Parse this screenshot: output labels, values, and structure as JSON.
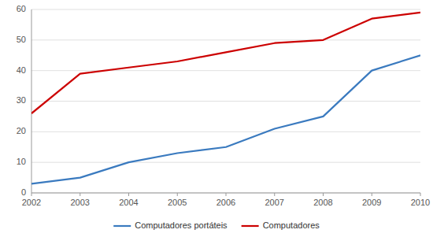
{
  "chart_data": {
    "type": "line",
    "x": [
      2002,
      2003,
      2004,
      2005,
      2006,
      2007,
      2008,
      2009,
      2010
    ],
    "series": [
      {
        "name": "Computadores portáteis",
        "color": "#3a7abf",
        "values": [
          3,
          5,
          10,
          13,
          15,
          21,
          25,
          40,
          45
        ]
      },
      {
        "name": "Computadores",
        "color": "#cc0000",
        "values": [
          26,
          39,
          41,
          43,
          46,
          49,
          50,
          57,
          59
        ]
      }
    ],
    "xlim": [
      2002,
      2010
    ],
    "xticks": [
      2002,
      2003,
      2004,
      2005,
      2006,
      2007,
      2008,
      2009,
      2010
    ],
    "ylim": [
      0,
      60
    ],
    "yticks": [
      0,
      10,
      20,
      30,
      40,
      50,
      60
    ],
    "grid": "y",
    "legend": "bottom"
  }
}
